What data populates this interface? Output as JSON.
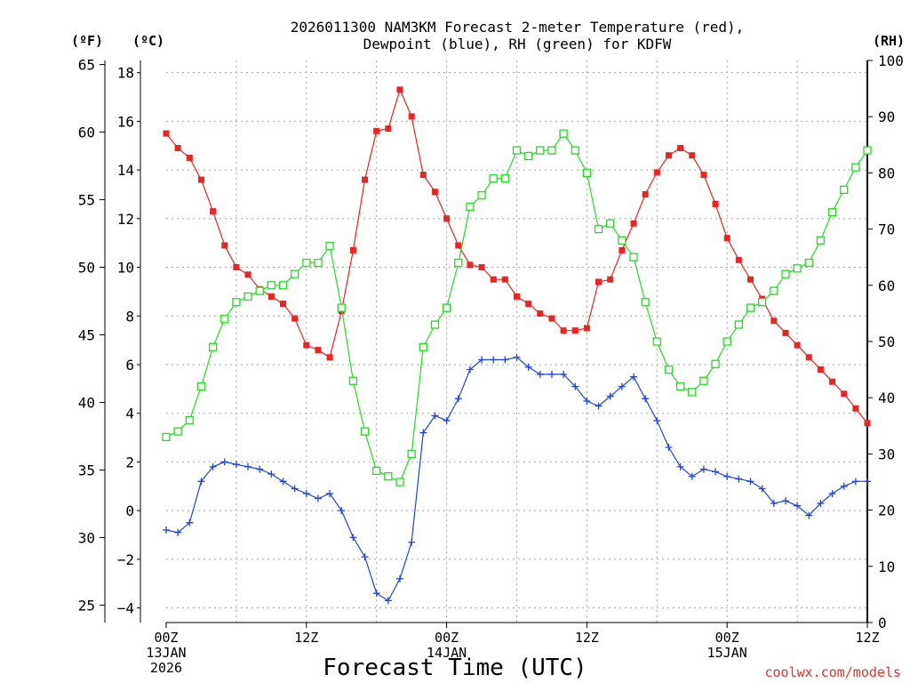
{
  "chart_data": {
    "type": "line",
    "title_line1": "2026011300 NAM3KM Forecast 2-meter Temperature (red),",
    "title_line2": "Dewpoint (blue), RH (green) for KDFW",
    "xlabel": "Forecast Time (UTC)",
    "watermark": "coolwx.com/models",
    "left_axis_f_label": "(ºF)",
    "left_axis_c_label": "(ºC)",
    "right_axis_label": "(RH)",
    "x_range_hours": [
      0,
      60
    ],
    "c_range": [
      -4.6,
      18.5
    ],
    "rh_range": [
      0,
      100
    ],
    "f_ticks": [
      25,
      30,
      35,
      40,
      45,
      50,
      55,
      60,
      65
    ],
    "c_ticks": [
      -4,
      -2,
      0,
      2,
      4,
      6,
      8,
      10,
      12,
      14,
      16,
      18
    ],
    "rh_ticks": [
      0,
      10,
      20,
      30,
      40,
      50,
      60,
      70,
      80,
      90,
      100
    ],
    "x_ticks": [
      {
        "hour": 0,
        "lines": [
          "00Z",
          "13JAN",
          "2026"
        ]
      },
      {
        "hour": 12,
        "lines": [
          "12Z"
        ]
      },
      {
        "hour": 24,
        "lines": [
          "00Z",
          "14JAN"
        ]
      },
      {
        "hour": 36,
        "lines": [
          "12Z"
        ]
      },
      {
        "hour": 48,
        "lines": [
          "00Z",
          "15JAN"
        ]
      },
      {
        "hour": 60,
        "lines": [
          "12Z"
        ]
      }
    ],
    "series": [
      {
        "name": "Temperature",
        "units": "C",
        "color": "#ee2222",
        "marker": "filled-square",
        "values": [
          15.5,
          14.9,
          14.5,
          13.6,
          12.3,
          10.9,
          10.0,
          9.7,
          9.1,
          8.8,
          8.5,
          7.9,
          6.8,
          6.6,
          6.3,
          8.2,
          10.7,
          13.6,
          15.6,
          15.7,
          17.3,
          16.2,
          13.8,
          13.1,
          12.0,
          10.9,
          10.1,
          10.0,
          9.5,
          9.5,
          8.8,
          8.5,
          8.1,
          7.9,
          7.4,
          7.4,
          7.5,
          9.4,
          9.5,
          10.7,
          11.8,
          13.0,
          13.9,
          14.6,
          14.9,
          14.6,
          13.8,
          12.6,
          11.2,
          10.3,
          9.5,
          8.7,
          7.8,
          7.3,
          6.8,
          6.3,
          5.8,
          5.3,
          4.8,
          4.2,
          3.6
        ]
      },
      {
        "name": "Dewpoint",
        "units": "C",
        "color": "#2244dd",
        "marker": "plus",
        "values": [
          -0.8,
          -0.9,
          -0.5,
          1.2,
          1.8,
          2.0,
          1.9,
          1.8,
          1.7,
          1.5,
          1.2,
          0.9,
          0.7,
          0.5,
          0.7,
          0.0,
          -1.1,
          -1.9,
          -3.4,
          -3.7,
          -2.8,
          -1.3,
          3.2,
          3.9,
          3.7,
          4.6,
          5.8,
          6.2,
          6.2,
          6.2,
          6.3,
          5.9,
          5.6,
          5.6,
          5.6,
          5.1,
          4.5,
          4.3,
          4.7,
          5.1,
          5.5,
          4.6,
          3.7,
          2.6,
          1.8,
          1.4,
          1.7,
          1.6,
          1.4,
          1.3,
          1.2,
          0.9,
          0.3,
          0.4,
          0.2,
          -0.2,
          0.3,
          0.7,
          1.0,
          1.2,
          1.2
        ]
      },
      {
        "name": "RH",
        "units": "%",
        "color": "#22dd22",
        "marker": "open-square",
        "values": [
          33,
          34,
          36,
          42,
          49,
          54,
          57,
          58,
          59,
          60,
          60,
          62,
          64,
          64,
          67,
          56,
          43,
          34,
          27,
          26,
          25,
          30,
          49,
          53,
          56,
          64,
          74,
          76,
          79,
          79,
          84,
          83,
          84,
          84,
          87,
          84,
          80,
          70,
          71,
          68,
          65,
          57,
          50,
          45,
          42,
          41,
          43,
          46,
          50,
          53,
          56,
          57,
          59,
          62,
          63,
          64,
          68,
          73,
          77,
          81,
          84
        ]
      }
    ]
  }
}
